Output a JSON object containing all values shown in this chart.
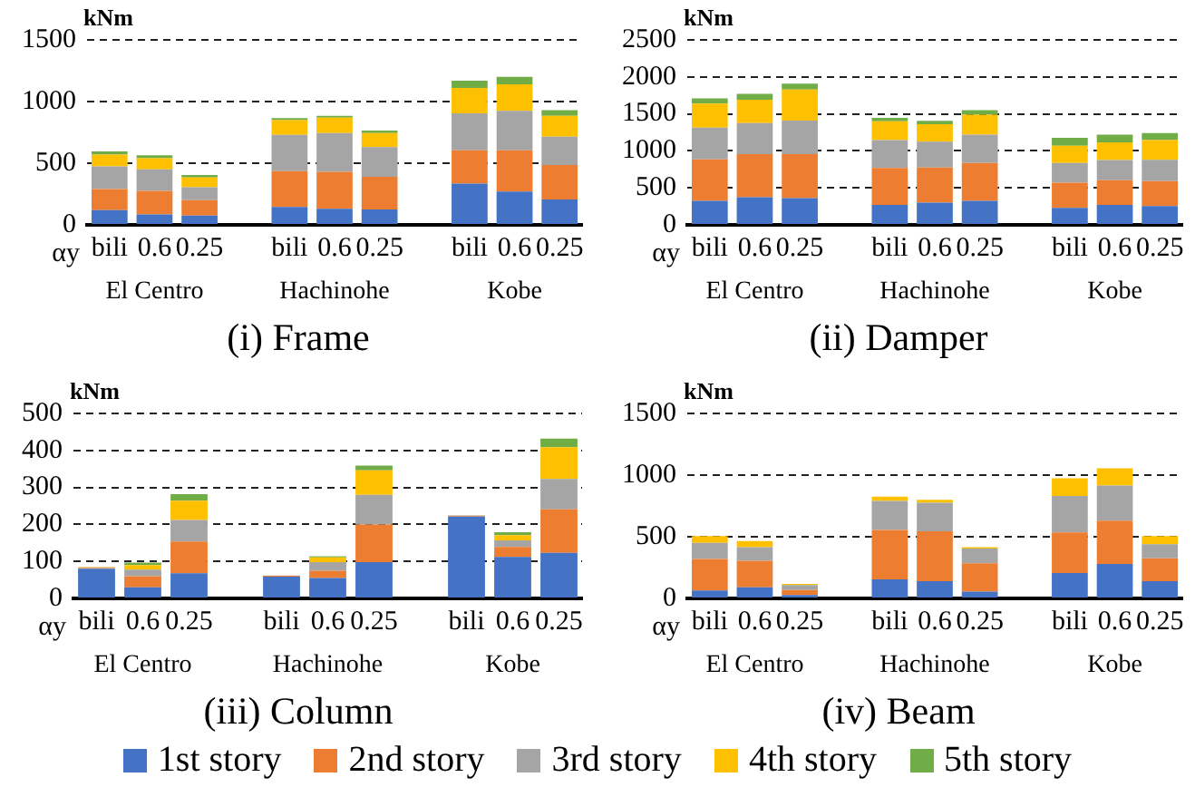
{
  "chart_data": [
    {
      "type": "bar",
      "title": "(i) Frame",
      "ylabel": "kNm",
      "xlabel": "αy",
      "stacked": true,
      "grid": "y",
      "legend": "bottom",
      "categories": [
        "bili",
        "0.6",
        "0.25",
        null,
        "bili",
        "0.6",
        "0.25",
        null,
        "bili",
        "0.6",
        "0.25"
      ],
      "annotations": [
        "El Centro",
        "Hachinohe",
        "Kobe"
      ],
      "ylim": [
        0,
        1500
      ],
      "yticks": [
        0,
        500,
        1000,
        1500
      ],
      "series": [
        {
          "name": "1st story",
          "color": "#4472c4",
          "values": [
            120,
            85,
            75,
            null,
            145,
            130,
            125,
            null,
            335,
            270,
            205
          ]
        },
        {
          "name": "2nd story",
          "color": "#ed7d31",
          "values": [
            170,
            190,
            125,
            null,
            290,
            300,
            265,
            null,
            270,
            335,
            280
          ]
        },
        {
          "name": "3rd story",
          "color": "#a5a5a5",
          "values": [
            185,
            175,
            105,
            null,
            295,
            315,
            240,
            null,
            300,
            320,
            230
          ]
        },
        {
          "name": "4th story",
          "color": "#ffc000",
          "values": [
            95,
            90,
            80,
            null,
            120,
            125,
            115,
            null,
            205,
            215,
            170
          ]
        },
        {
          "name": "5th story",
          "color": "#70ad47",
          "values": [
            25,
            25,
            20,
            null,
            15,
            15,
            20,
            null,
            60,
            60,
            45
          ]
        }
      ]
    },
    {
      "type": "bar",
      "title": "(ii) Damper",
      "ylabel": "kNm",
      "xlabel": "αy",
      "stacked": true,
      "grid": "y",
      "categories": [
        "bili",
        "0.6",
        "0.25",
        null,
        "bili",
        "0.6",
        "0.25",
        null,
        "bili",
        "0.6",
        "0.25"
      ],
      "annotations": [
        "El Centro",
        "Hachinohe",
        "Kobe"
      ],
      "ylim": [
        0,
        2500
      ],
      "yticks": [
        0,
        500,
        1000,
        1500,
        2000,
        2500
      ],
      "series": [
        {
          "color": "#4472c4",
          "values": [
            325,
            375,
            360,
            null,
            270,
            300,
            325,
            null,
            230,
            270,
            255
          ]
        },
        {
          "color": "#ed7d31",
          "values": [
            560,
            580,
            595,
            null,
            500,
            475,
            510,
            null,
            340,
            335,
            335
          ]
        },
        {
          "color": "#a5a5a5",
          "values": [
            430,
            420,
            455,
            null,
            375,
            350,
            385,
            null,
            265,
            270,
            290
          ]
        },
        {
          "color": "#ffc000",
          "values": [
            325,
            315,
            420,
            null,
            255,
            235,
            270,
            null,
            235,
            240,
            265
          ]
        },
        {
          "color": "#70ad47",
          "values": [
            70,
            80,
            80,
            null,
            45,
            45,
            60,
            null,
            105,
            105,
            95
          ]
        }
      ]
    },
    {
      "type": "bar",
      "title": "(iii) Column",
      "ylabel": "kNm",
      "xlabel": "αy",
      "stacked": true,
      "grid": "y",
      "categories": [
        "bili",
        "0.6",
        "0.25",
        null,
        "bili",
        "0.6",
        "0.25",
        null,
        "bili",
        "0.6",
        "0.25"
      ],
      "annotations": [
        "El Centro",
        "Hachinohe",
        "Kobe"
      ],
      "ylim": [
        0,
        500
      ],
      "yticks": [
        0,
        100,
        200,
        300,
        400,
        500
      ],
      "series": [
        {
          "color": "#4472c4",
          "values": [
            80,
            30,
            68,
            null,
            59,
            55,
            98,
            null,
            221,
            112,
            123
          ]
        },
        {
          "color": "#ed7d31",
          "values": [
            2,
            30,
            86,
            null,
            2,
            20,
            102,
            null,
            2,
            27,
            118
          ]
        },
        {
          "color": "#a5a5a5",
          "values": [
            2,
            18,
            58,
            null,
            1,
            23,
            80,
            null,
            1,
            18,
            82
          ]
        },
        {
          "color": "#ffc000",
          "values": [
            1,
            12,
            52,
            null,
            0,
            13,
            66,
            null,
            1,
            14,
            86
          ]
        },
        {
          "color": "#70ad47",
          "values": [
            0,
            7,
            18,
            null,
            0,
            3,
            13,
            null,
            0,
            8,
            23
          ]
        }
      ]
    },
    {
      "type": "bar",
      "title": "(iv) Beam",
      "ylabel": "kNm",
      "xlabel": "αy",
      "stacked": true,
      "grid": "y",
      "categories": [
        "bili",
        "0.6",
        "0.25",
        null,
        "bili",
        "0.6",
        "0.25",
        null,
        "bili",
        "0.6",
        "0.25"
      ],
      "annotations": [
        "El Centro",
        "Hachinohe",
        "Kobe"
      ],
      "ylim": [
        0,
        1500
      ],
      "yticks": [
        0,
        500,
        1000,
        1500
      ],
      "series": [
        {
          "color": "#4472c4",
          "values": [
            65,
            90,
            28,
            null,
            155,
            140,
            55,
            null,
            205,
            280,
            140
          ]
        },
        {
          "color": "#ed7d31",
          "values": [
            255,
            215,
            40,
            null,
            400,
            405,
            230,
            null,
            330,
            350,
            185
          ]
        },
        {
          "color": "#a5a5a5",
          "values": [
            130,
            110,
            40,
            null,
            235,
            230,
            120,
            null,
            295,
            285,
            115
          ]
        },
        {
          "color": "#ffc000",
          "values": [
            55,
            50,
            10,
            null,
            35,
            25,
            10,
            null,
            145,
            140,
            65
          ]
        },
        {
          "color": "#70ad47",
          "values": [
            0,
            0,
            0,
            null,
            0,
            0,
            0,
            null,
            0,
            0,
            0
          ]
        }
      ]
    }
  ]
}
